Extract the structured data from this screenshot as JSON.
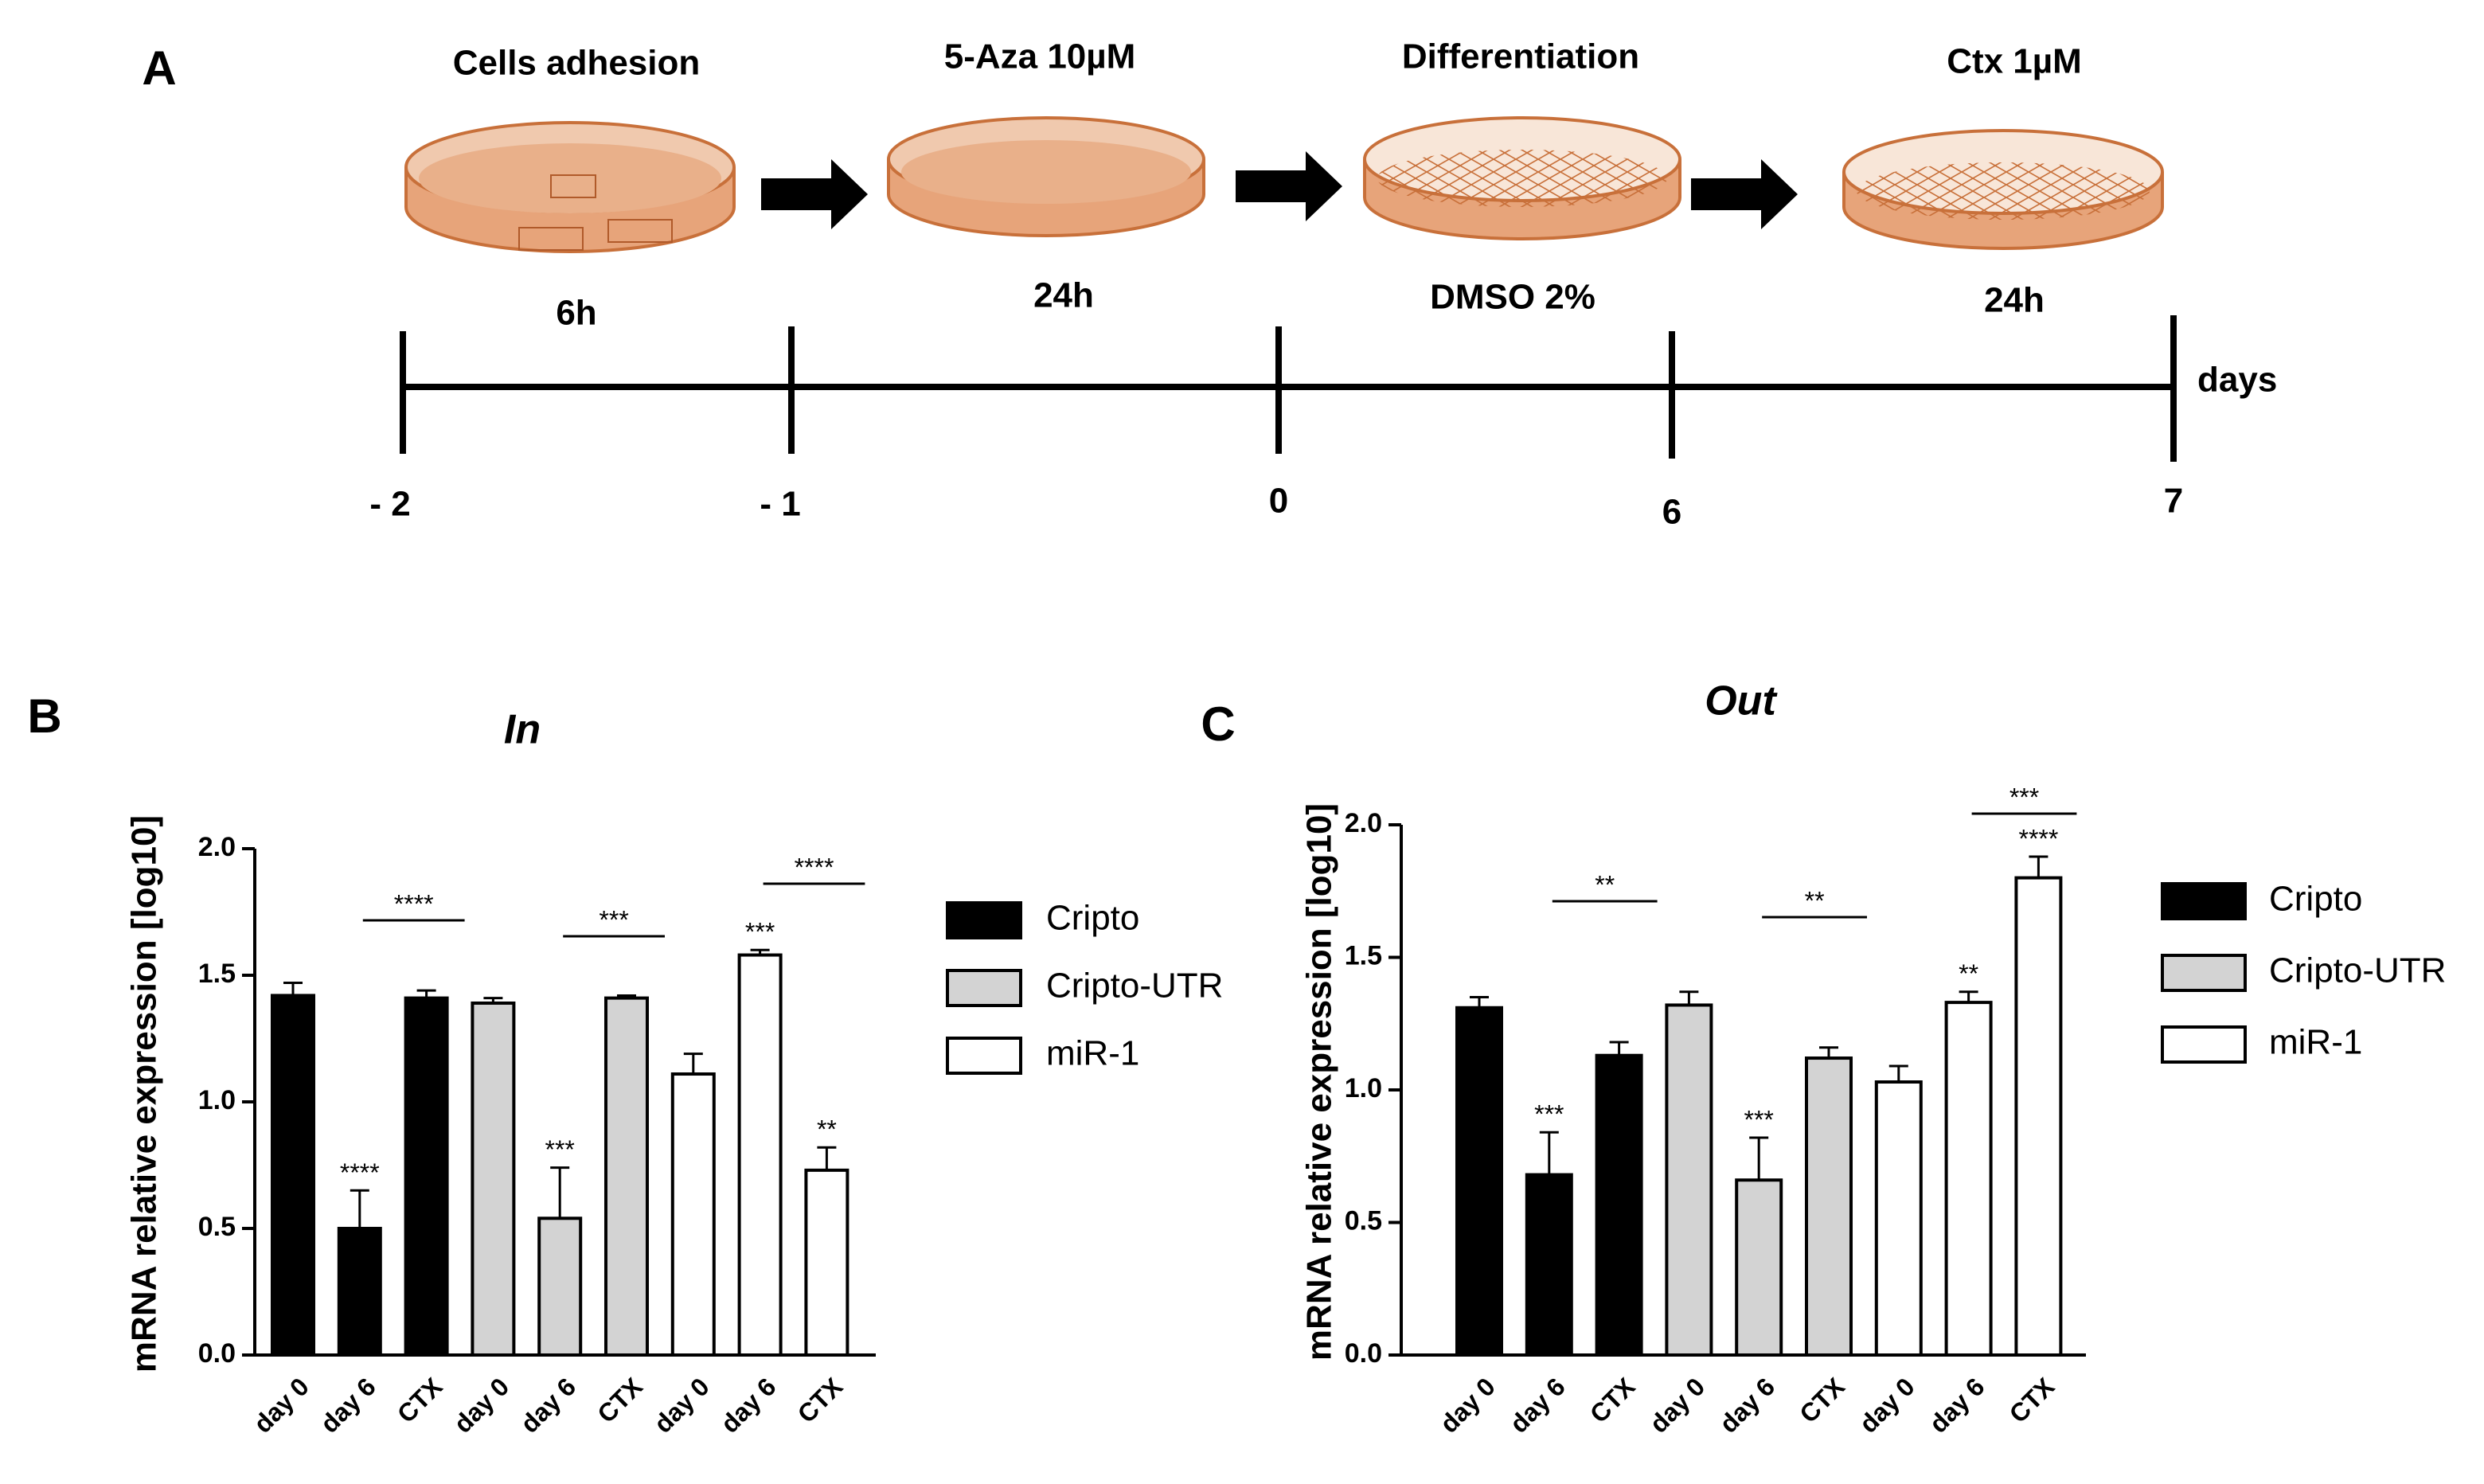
{
  "panel_a": {
    "label": "A",
    "steps": [
      {
        "title": "Cells adhesion",
        "duration": "6h"
      },
      {
        "title": "5-Aza 10µM",
        "duration": "24h"
      },
      {
        "title": "Differentiation",
        "duration": "DMSO 2%"
      },
      {
        "title": "Ctx 1µM",
        "duration": "24h"
      }
    ],
    "timeline_labels": [
      "- 2",
      "- 1",
      "0",
      "6",
      "7"
    ],
    "unit": "days"
  },
  "chart_data": [
    {
      "type": "bar",
      "panel": "B",
      "title": "In",
      "y_label": "mRNA relative expression [log10]",
      "ylim": [
        0,
        2
      ],
      "yticks": [
        {
          "value": 0,
          "label": "0.0"
        },
        {
          "value": 0.5,
          "label": "0.5"
        },
        {
          "value": 1,
          "label": "1.0"
        },
        {
          "value": 1.5,
          "label": "1.5"
        },
        {
          "value": 2,
          "label": "2.0"
        }
      ],
      "series": [
        {
          "name": "Cripto",
          "color": "#000000",
          "categories": [
            "day 0",
            "day 6",
            "CTX"
          ],
          "values": [
            1.42,
            0.5,
            1.41
          ],
          "errors": [
            0.05,
            0.15,
            0.03
          ],
          "significance": [
            null,
            "****",
            null
          ]
        },
        {
          "name": "Cripto-UTR",
          "color": "#d3d3d3",
          "categories": [
            "day 0",
            "day 6",
            "CTX"
          ],
          "values": [
            1.39,
            0.54,
            1.41
          ],
          "errors": [
            0.02,
            0.2,
            0.01
          ],
          "significance": [
            null,
            "***",
            null
          ]
        },
        {
          "name": "miR-1",
          "color": "#ffffff",
          "categories": [
            "day 0",
            "day 6",
            "CTX"
          ],
          "values": [
            1.11,
            1.58,
            0.73
          ],
          "errors": [
            0.08,
            0.02,
            0.09
          ],
          "significance": [
            null,
            "***",
            "**"
          ]
        }
      ],
      "brackets": [
        {
          "series": 0,
          "between": [
            1,
            2
          ],
          "label": "****"
        },
        {
          "series": 1,
          "between": [
            1,
            2
          ],
          "label": "***"
        },
        {
          "series": 2,
          "between": [
            1,
            2
          ],
          "label": "****"
        }
      ]
    },
    {
      "type": "bar",
      "panel": "C",
      "title": "Out",
      "y_label": "mRNA relative expression [log10]",
      "ylim": [
        0,
        2
      ],
      "yticks": [
        {
          "value": 0,
          "label": "0.0"
        },
        {
          "value": 0.5,
          "label": "0.5"
        },
        {
          "value": 1,
          "label": "1.0"
        },
        {
          "value": 1.5,
          "label": "1.5"
        },
        {
          "value": 2,
          "label": "2.0"
        }
      ],
      "series": [
        {
          "name": "Cripto",
          "color": "#000000",
          "categories": [
            "day 0",
            "day 6",
            "CTX"
          ],
          "values": [
            1.31,
            0.68,
            1.13
          ],
          "errors": [
            0.04,
            0.16,
            0.05
          ],
          "significance": [
            null,
            "***",
            null
          ]
        },
        {
          "name": "Cripto-UTR",
          "color": "#d3d3d3",
          "categories": [
            "day 0",
            "day 6",
            "CTX"
          ],
          "values": [
            1.32,
            0.66,
            1.12
          ],
          "errors": [
            0.05,
            0.16,
            0.04
          ],
          "significance": [
            null,
            "***",
            null
          ]
        },
        {
          "name": "miR-1",
          "color": "#ffffff",
          "categories": [
            "day 0",
            "day 6",
            "CTX"
          ],
          "values": [
            1.03,
            1.33,
            1.8
          ],
          "errors": [
            0.06,
            0.04,
            0.08
          ],
          "significance": [
            null,
            "**",
            "****"
          ]
        }
      ],
      "brackets": [
        {
          "series": 0,
          "between": [
            1,
            2
          ],
          "label": "**"
        },
        {
          "series": 1,
          "between": [
            1,
            2
          ],
          "label": "**"
        },
        {
          "series": 2,
          "between": [
            1,
            2
          ],
          "label": "***"
        }
      ]
    }
  ]
}
